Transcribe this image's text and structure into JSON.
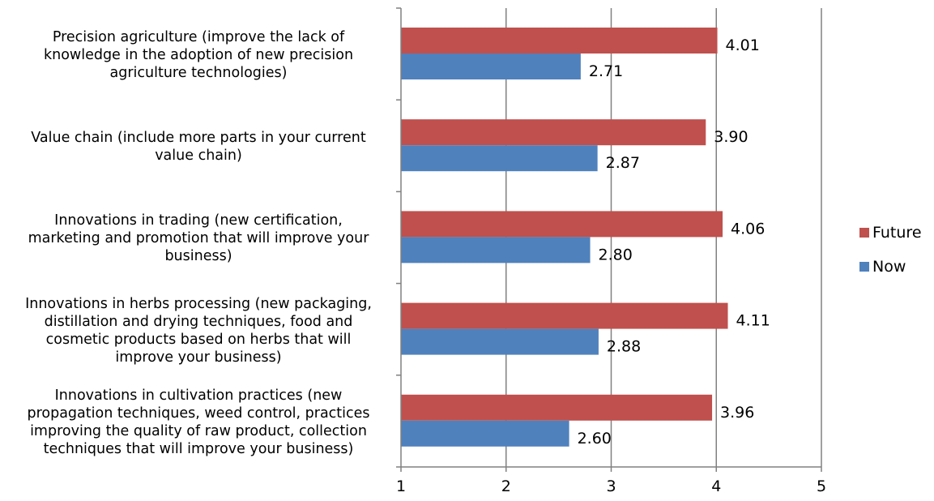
{
  "chart_data": {
    "type": "bar",
    "orientation": "horizontal",
    "categories": [
      "Precision agriculture (improve the lack of knowledge in the adoption of new precision agriculture technologies)",
      "Value chain (include more parts in your current value chain)",
      "Innovations in trading (new certification, marketing and promotion that will improve your business)",
      "Innovations in herbs processing (new packaging, distillation and drying techniques, food and cosmetic products based on herbs that will improve your business)",
      "Innovations in cultivation practices (new propagation techniques, weed control, practices improving the quality of raw product, collection techniques that will improve your business)"
    ],
    "category_lines": [
      [
        "Precision agriculture (improve the lack of",
        "knowledge in the adoption of new precision",
        "agriculture technologies)"
      ],
      [
        "Value chain (include more parts in your current",
        "value chain)"
      ],
      [
        "Innovations in trading (new certification,",
        "marketing and promotion that will improve your",
        "business)"
      ],
      [
        "Innovations in herbs processing (new packaging,",
        "distillation and drying techniques, food and",
        "cosmetic products based on herbs that will",
        "improve your business)"
      ],
      [
        "Innovations in cultivation practices (new",
        "propagation techniques, weed control, practices",
        "improving the quality of raw product, collection",
        "techniques that will improve your business)"
      ]
    ],
    "series": [
      {
        "name": "Future",
        "color": "#c0504d",
        "values": [
          4.01,
          3.9,
          4.06,
          4.11,
          3.96
        ],
        "labels": [
          "4.01",
          "3.90",
          "4.06",
          "4.11",
          "3.96"
        ]
      },
      {
        "name": "Now",
        "color": "#4f81bd",
        "values": [
          2.71,
          2.87,
          2.8,
          2.88,
          2.6
        ],
        "labels": [
          "2.71",
          "2.87",
          "2.80",
          "2.88",
          "2.60"
        ]
      }
    ],
    "xlim": [
      1,
      5
    ],
    "xticks": [
      "1",
      "2",
      "3",
      "4",
      "5"
    ],
    "grid": "vertical",
    "legend_position": "right"
  }
}
